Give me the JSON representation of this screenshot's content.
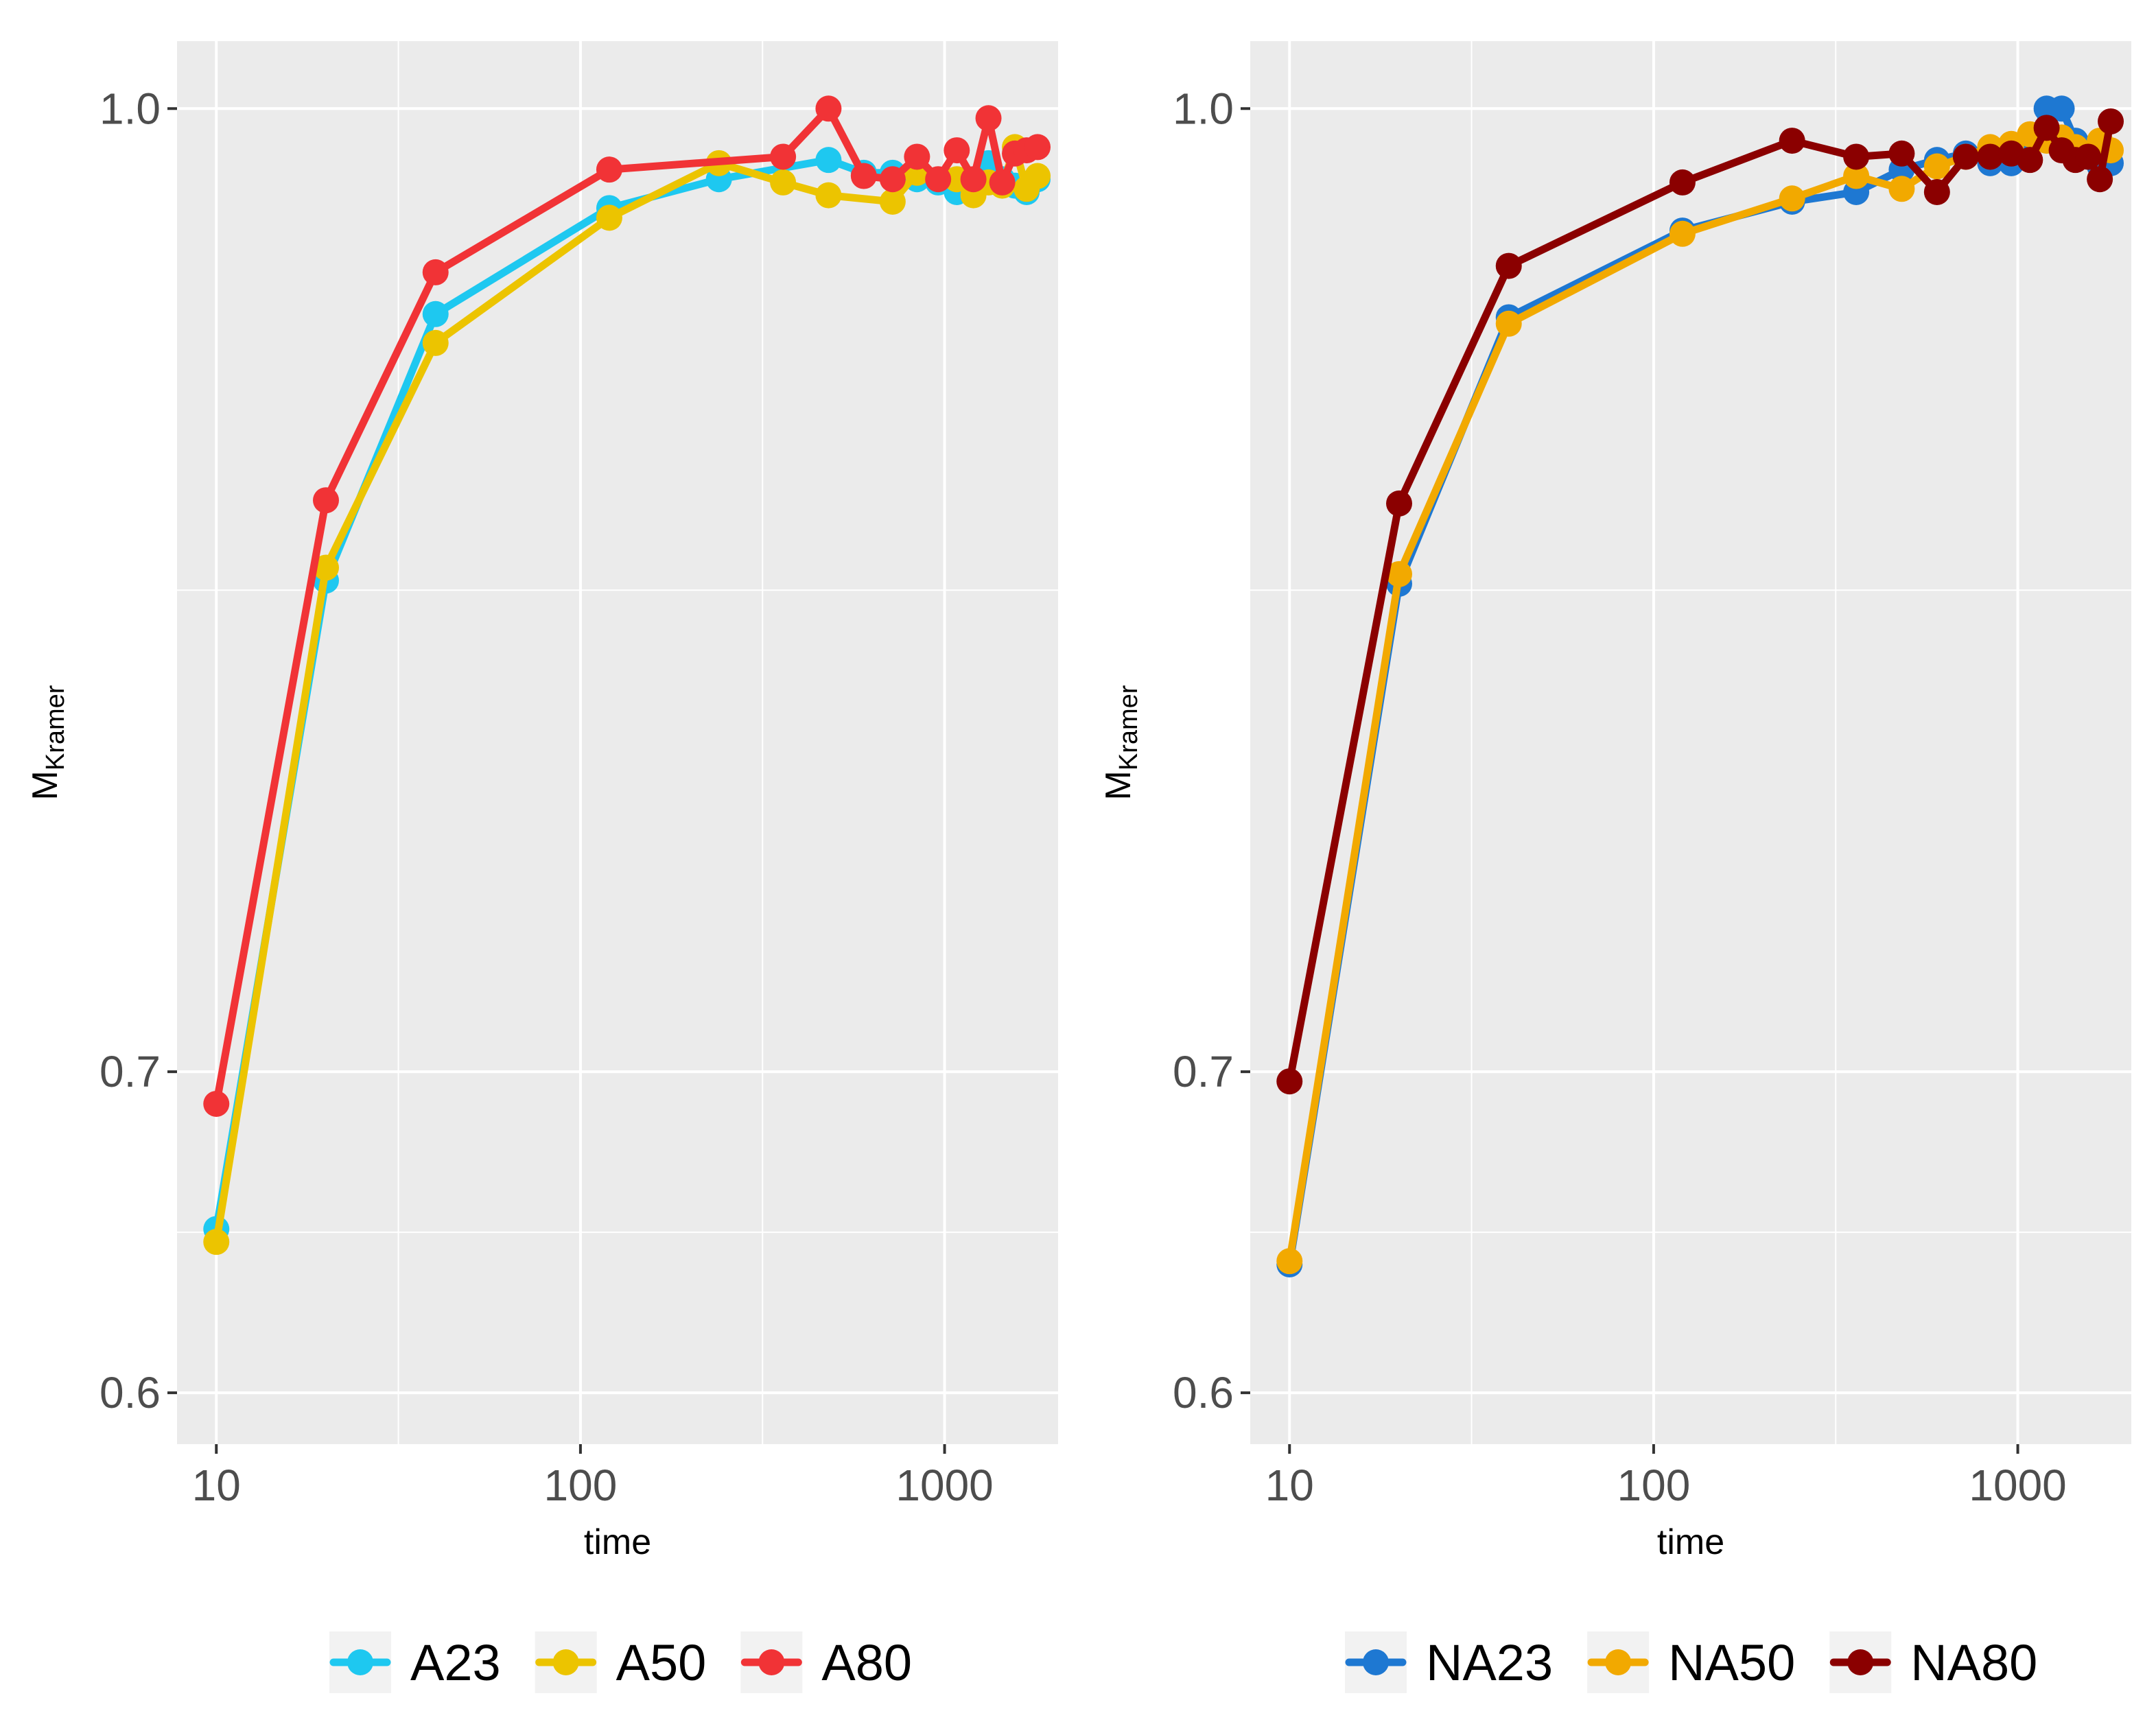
{
  "chart_data": [
    {
      "type": "line",
      "panel": "left",
      "xscale": "log10",
      "xlabel": "time",
      "ylabel": "M",
      "ylabel_sub": "Kramer",
      "xlim": [
        7.8,
        2050
      ],
      "ylim": [
        0.584,
        1.021
      ],
      "xticks": [
        10,
        100,
        1000
      ],
      "xtick_labels": [
        "10",
        "100",
        "1000"
      ],
      "yticks": [
        0.6,
        0.7,
        1.0
      ],
      "ytick_labels": [
        "0.6",
        "0.7",
        "1.0"
      ],
      "ygrid_minor": [
        0.65,
        0.85
      ],
      "legend_position": "bottom",
      "series": [
        {
          "name": "A23",
          "color": "#1ec8f0",
          "x": [
            10,
            20,
            40,
            120,
            240,
            480,
            600,
            720,
            840,
            960,
            1080,
            1200,
            1320,
            1440,
            1560,
            1680,
            1800
          ],
          "y": [
            0.651,
            0.853,
            0.936,
            0.969,
            0.978,
            0.984,
            0.98,
            0.98,
            0.978,
            0.977,
            0.974,
            0.975,
            0.983,
            0.978,
            0.976,
            0.974,
            0.978
          ]
        },
        {
          "name": "A50",
          "color": "#ecc400",
          "x": [
            10,
            20,
            40,
            120,
            240,
            360,
            480,
            720,
            840,
            1080,
            1200,
            1320,
            1440,
            1560,
            1680,
            1800
          ],
          "y": [
            0.647,
            0.857,
            0.927,
            0.966,
            0.983,
            0.977,
            0.973,
            0.971,
            0.98,
            0.978,
            0.973,
            0.977,
            0.976,
            0.988,
            0.975,
            0.979
          ]
        },
        {
          "name": "A80",
          "color": "#f13336",
          "x": [
            10,
            20,
            40,
            120,
            360,
            480,
            600,
            720,
            840,
            960,
            1080,
            1200,
            1320,
            1440,
            1560,
            1680,
            1800
          ],
          "y": [
            0.69,
            0.878,
            0.949,
            0.981,
            0.985,
            1.0,
            0.979,
            0.978,
            0.985,
            0.978,
            0.987,
            0.978,
            0.997,
            0.977,
            0.986,
            0.987,
            0.988
          ]
        }
      ]
    },
    {
      "type": "line",
      "panel": "right",
      "xscale": "log10",
      "xlabel": "time",
      "ylabel": "M",
      "ylabel_sub": "Kramer",
      "xlim": [
        7.8,
        2050
      ],
      "ylim": [
        0.584,
        1.021
      ],
      "xticks": [
        10,
        100,
        1000
      ],
      "xtick_labels": [
        "10",
        "100",
        "1000"
      ],
      "yticks": [
        0.6,
        0.7,
        1.0
      ],
      "ytick_labels": [
        "0.6",
        "0.7",
        "1.0"
      ],
      "ygrid_minor": [
        0.65,
        0.85
      ],
      "legend_position": "bottom",
      "series": [
        {
          "name": "NA23",
          "color": "#1e78d2",
          "x": [
            10,
            20,
            40,
            120,
            240,
            360,
            480,
            600,
            720,
            840,
            960,
            1080,
            1200,
            1320,
            1440,
            1560,
            1680,
            1800
          ],
          "y": [
            0.64,
            0.852,
            0.935,
            0.962,
            0.971,
            0.974,
            0.981,
            0.984,
            0.986,
            0.983,
            0.983,
            0.99,
            1.0,
            1.0,
            0.99,
            0.985,
            0.982,
            0.983
          ]
        },
        {
          "name": "NA50",
          "color": "#f2a900",
          "x": [
            10,
            20,
            40,
            120,
            240,
            360,
            480,
            600,
            720,
            840,
            960,
            1080,
            1200,
            1320,
            1440,
            1560,
            1680,
            1800
          ],
          "y": [
            0.641,
            0.855,
            0.933,
            0.961,
            0.972,
            0.979,
            0.975,
            0.982,
            0.985,
            0.988,
            0.989,
            0.992,
            0.99,
            0.991,
            0.988,
            0.986,
            0.99,
            0.987
          ]
        },
        {
          "name": "NA80",
          "color": "#8b0000",
          "x": [
            10,
            20,
            40,
            120,
            240,
            360,
            480,
            600,
            720,
            840,
            960,
            1080,
            1200,
            1320,
            1440,
            1560,
            1680,
            1800
          ],
          "y": [
            0.697,
            0.877,
            0.951,
            0.977,
            0.99,
            0.985,
            0.986,
            0.974,
            0.985,
            0.985,
            0.986,
            0.984,
            0.994,
            0.987,
            0.984,
            0.985,
            0.978,
            0.996
          ]
        }
      ]
    }
  ]
}
